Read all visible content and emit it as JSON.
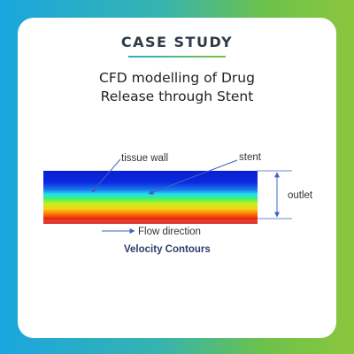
{
  "card": {
    "badge": "CASE STUDY",
    "title_line1": "CFD modelling of Drug",
    "title_line2": "Release through Stent"
  },
  "diagram": {
    "labels": {
      "tissue_wall": "tissue wall",
      "stent": "stent",
      "outlet": "outlet",
      "flow_direction": "Flow direction"
    },
    "caption": "Velocity Contours",
    "colors": {
      "arrow": "#3b63c4",
      "dimension_line": "#3b63c4"
    }
  }
}
